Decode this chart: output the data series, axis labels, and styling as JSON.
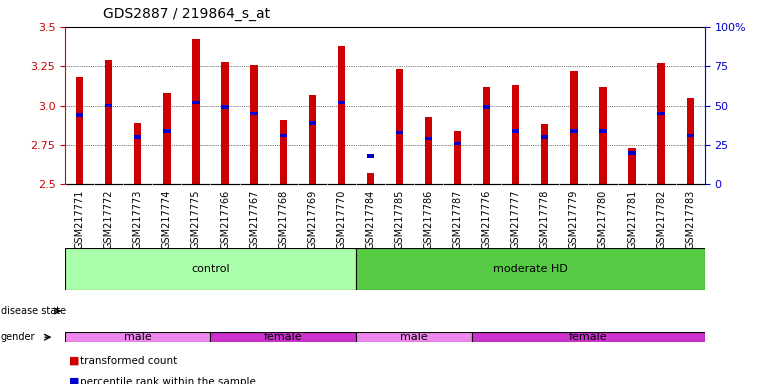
{
  "title": "GDS2887 / 219864_s_at",
  "samples": [
    "GSM217771",
    "GSM217772",
    "GSM217773",
    "GSM217774",
    "GSM217775",
    "GSM217766",
    "GSM217767",
    "GSM217768",
    "GSM217769",
    "GSM217770",
    "GSM217784",
    "GSM217785",
    "GSM217786",
    "GSM217787",
    "GSM217776",
    "GSM217777",
    "GSM217778",
    "GSM217779",
    "GSM217780",
    "GSM217781",
    "GSM217782",
    "GSM217783"
  ],
  "transformed_count": [
    3.18,
    3.29,
    2.89,
    3.08,
    3.42,
    3.28,
    3.26,
    2.91,
    3.07,
    3.38,
    2.57,
    3.23,
    2.93,
    2.84,
    3.12,
    3.13,
    2.88,
    3.22,
    3.12,
    2.73,
    3.27,
    3.05
  ],
  "percentile_rank": [
    2.94,
    3.0,
    2.8,
    2.84,
    3.02,
    2.99,
    2.95,
    2.81,
    2.89,
    3.02,
    2.68,
    2.83,
    2.79,
    2.76,
    2.99,
    2.84,
    2.8,
    2.84,
    2.84,
    2.7,
    2.95,
    2.81
  ],
  "ymin": 2.5,
  "ymax": 3.5,
  "yticks": [
    2.5,
    2.75,
    3.0,
    3.25,
    3.5
  ],
  "right_yticks": [
    0,
    25,
    50,
    75,
    100
  ],
  "right_yticklabels": [
    "0",
    "25",
    "50",
    "75",
    "100%"
  ],
  "bar_color": "#cc0000",
  "percentile_color": "#0000cc",
  "bar_width": 0.25,
  "pct_bar_height": 0.022,
  "disease_state_groups": [
    {
      "label": "control",
      "start": 0,
      "end": 10,
      "color": "#aaffaa"
    },
    {
      "label": "moderate HD",
      "start": 10,
      "end": 22,
      "color": "#55cc44"
    }
  ],
  "gender_groups": [
    {
      "label": "male",
      "start": 0,
      "end": 5,
      "color": "#ee88ee"
    },
    {
      "label": "female",
      "start": 5,
      "end": 10,
      "color": "#cc33cc"
    },
    {
      "label": "male",
      "start": 10,
      "end": 14,
      "color": "#ee88ee"
    },
    {
      "label": "female",
      "start": 14,
      "end": 22,
      "color": "#cc33cc"
    }
  ],
  "legend_items": [
    {
      "label": "transformed count",
      "color": "#cc0000"
    },
    {
      "label": "percentile rank within the sample",
      "color": "#0000cc"
    }
  ],
  "tick_color": "#cc0000",
  "right_tick_color": "#0000cc",
  "grid_linestyle": "dotted",
  "background_color": "white",
  "xtick_bg_color": "#dddddd",
  "label_fontsize": 7,
  "ytick_fontsize": 8,
  "annotation_fontsize": 8
}
